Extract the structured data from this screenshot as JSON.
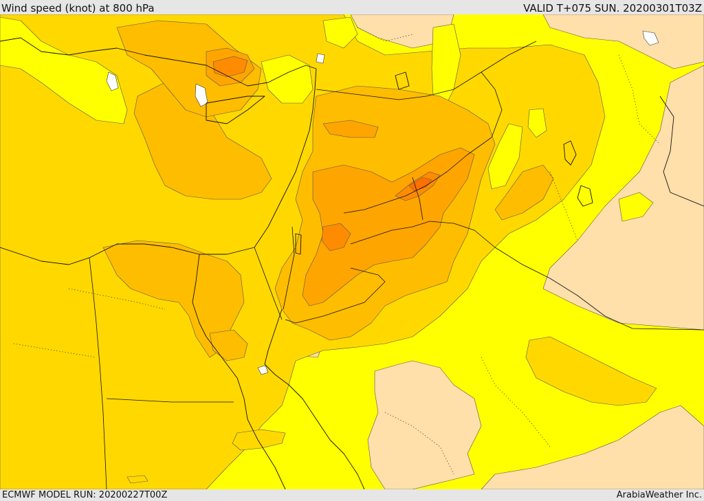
{
  "header": {
    "title": "Wind speed (knot) at 800 hPa",
    "valid": "VALID T+075 SUN. 20200301T03Z"
  },
  "footer": {
    "model_run": "ECMWF MODEL RUN: 20200227T00Z",
    "credit": "ArabiaWeather Inc."
  },
  "colors": {
    "level_0": "#ffdfaa",
    "level_1": "#ffff00",
    "level_2": "#ffd800",
    "level_3": "#ffbd00",
    "level_4": "#ffa500",
    "level_5": "#ff8c00",
    "level_6": "#ff7000",
    "missing": "#ffffff"
  }
}
